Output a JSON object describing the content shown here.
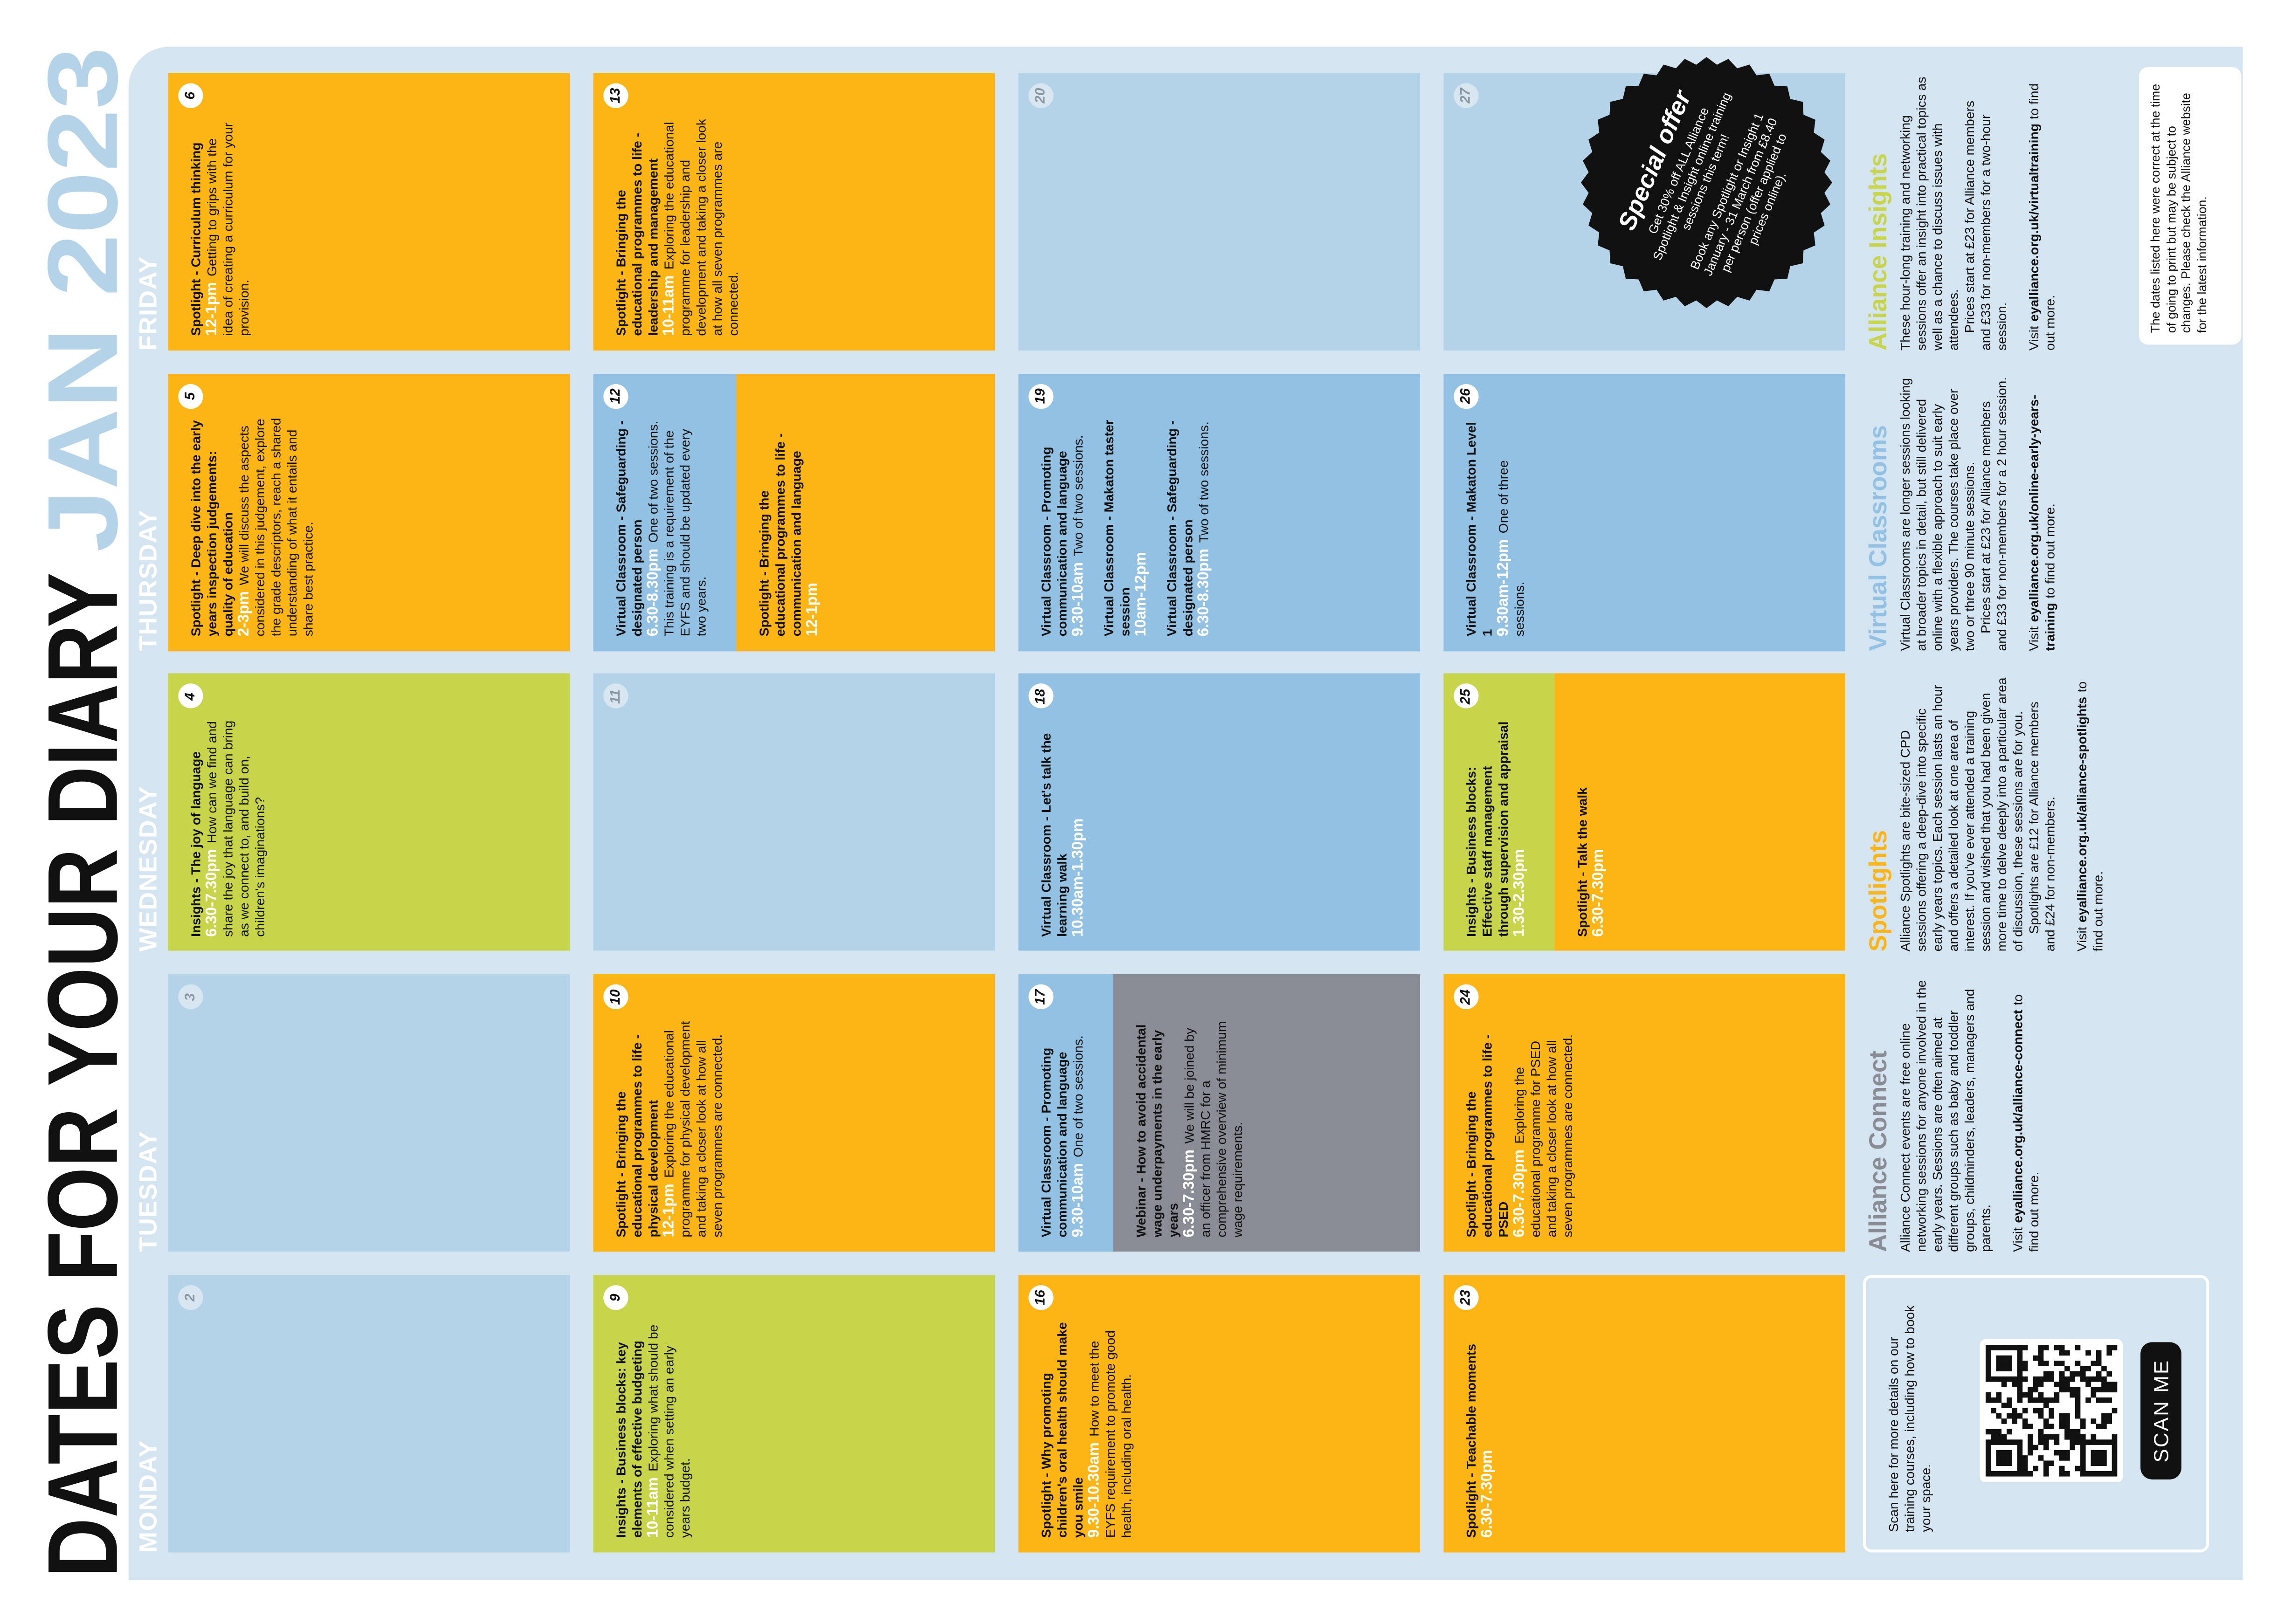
{
  "header": {
    "title": "DATES FOR YOUR DIARY",
    "month": "JAN 2023"
  },
  "days": [
    "MONDAY",
    "TUESDAY",
    "WEDNESDAY",
    "THURSDAY",
    "FRIDAY"
  ],
  "weeks": [
    [
      {
        "day": 2,
        "parts": [
          {
            "color": "#b5d3e8",
            "sessions": []
          }
        ]
      },
      {
        "day": 3,
        "parts": [
          {
            "color": "#b5d3e8",
            "sessions": []
          }
        ]
      },
      {
        "day": 4,
        "parts": [
          {
            "color": "#c8d44a",
            "sessions": [
              {
                "title": "Insights - The joy of language",
                "time": "6.30-7.30pm",
                "description": "How can we find and share the joy that language can bring as we connect to, and build on, children's imaginations?"
              }
            ]
          }
        ]
      },
      {
        "day": 5,
        "parts": [
          {
            "color": "#fdb515",
            "sessions": [
              {
                "title": "Spotlight - Deep dive into the early years inspection judgements: quality of education",
                "time": "2-3pm",
                "description": "We will discuss the aspects considered in this judgement, explore the grade descriptors, reach a shared understanding of what it entails and share best practice."
              }
            ]
          }
        ]
      },
      {
        "day": 6,
        "parts": [
          {
            "color": "#fdb515",
            "sessions": [
              {
                "title": "Spotlight - Curriculum thinking",
                "time": "12-1pm",
                "description": "Getting to grips with the idea of creating a curriculum for your provision."
              }
            ]
          }
        ]
      }
    ],
    [
      {
        "day": 9,
        "parts": [
          {
            "color": "#c8d44a",
            "sessions": [
              {
                "title": "Insights - Business blocks: key elements of effective budgeting",
                "time": "10-11am",
                "description": "Exploring what should be considered when setting an early years budget."
              }
            ]
          }
        ]
      },
      {
        "day": 10,
        "parts": [
          {
            "color": "#fdb515",
            "sessions": [
              {
                "title": "Spotlight - Bringing the educational programmes to life - physical development",
                "time": "12-1pm",
                "description": "Exploring the educational programme for physical development and taking a closer look at how all seven programmes are connected."
              }
            ]
          }
        ]
      },
      {
        "day": 11,
        "parts": [
          {
            "color": "#b5d3e8",
            "sessions": []
          }
        ]
      },
      {
        "day": 12,
        "parts": [
          {
            "color": "#93c1e3",
            "sessions": [
              {
                "title": "Virtual Classroom - Safeguarding - designated person",
                "time": "6.30-8.30pm",
                "description": "One of two sessions. This training is a requirement of the EYFS and should be updated every two years."
              }
            ]
          },
          {
            "color": "#fdb515",
            "sessions": [
              {
                "title": "Spotlight - Bringing the educational programmes to life - communication and language",
                "time": "12-1pm"
              }
            ]
          }
        ]
      },
      {
        "day": 13,
        "parts": [
          {
            "color": "#fdb515",
            "sessions": [
              {
                "title": "Spotlight - Bringing the educational programmes to life - leadership and management",
                "time": "10-11am",
                "description": "Exploring the educational programme for leadership and development and taking a closer look at how all seven programmes are connected."
              }
            ]
          }
        ]
      }
    ],
    [
      {
        "day": 16,
        "parts": [
          {
            "color": "#fdb515",
            "sessions": [
              {
                "title": "Spotlight - Why promoting children's oral health should make you smile",
                "time": "9.30-10.30am",
                "description": "How to meet the EYFS requirement to promote good health, including oral health."
              }
            ]
          }
        ]
      },
      {
        "day": 17,
        "parts": [
          {
            "color": "#93c1e3",
            "sessions": [
              {
                "title": "Virtual Classroom - Promoting communication and language",
                "time": "9.30-10am",
                "description": "One of two sessions."
              }
            ]
          },
          {
            "color": "#898c94",
            "sessions": [
              {
                "title": "Webinar - How to avoid accidental wage underpayments in the early years",
                "time": "6.30-7.30pm",
                "description": "We will be joined by an officer from HMRC for a comprehensive overview of minimum wage requirements."
              }
            ]
          }
        ]
      },
      {
        "day": 18,
        "parts": [
          {
            "color": "#93c1e3",
            "sessions": [
              {
                "title": "Virtual Classroom - Let's talk the learning walk",
                "time": "10.30am-1.30pm"
              }
            ]
          }
        ]
      },
      {
        "day": 19,
        "parts": [
          {
            "color": "#93c1e3",
            "sessions": [
              {
                "title": "Virtual Classroom - Promoting communication and language",
                "time": "9.30-10am",
                "description": "Two of two sessions."
              },
              {
                "title": "Virtual Classroom - Makaton taster session",
                "time": "10am-12pm"
              },
              {
                "title": "Virtual Classroom - Safeguarding - designated person",
                "time": "6.30-8.30pm",
                "description": "Two of two sessions."
              }
            ]
          }
        ]
      },
      {
        "day": 20,
        "parts": [
          {
            "color": "#b5d3e8",
            "sessions": []
          }
        ]
      }
    ],
    [
      {
        "day": 23,
        "parts": [
          {
            "color": "#fdb515",
            "sessions": [
              {
                "title": "Spotlight - Teachable moments",
                "time": "6.30-7.30pm"
              }
            ]
          }
        ]
      },
      {
        "day": 24,
        "parts": [
          {
            "color": "#fdb515",
            "sessions": [
              {
                "title": "Spotlight - Bringing the educational programmes to life - PSED",
                "time": "6.30-7.30pm",
                "description": "Exploring the educational programme for PSED and taking a closer look at how all seven programmes are connected."
              }
            ]
          }
        ]
      },
      {
        "day": 25,
        "parts": [
          {
            "color": "#c8d44a",
            "sessions": [
              {
                "title": "Insights - Business blocks: Effective staff management through supervision and appraisal",
                "time": "1.30-2.30pm"
              }
            ]
          },
          {
            "color": "#fdb515",
            "sessions": [
              {
                "title": "Spotlight - Talk the walk",
                "time": "6.30-7.30pm"
              }
            ]
          }
        ]
      },
      {
        "day": 26,
        "parts": [
          {
            "color": "#93c1e3",
            "sessions": [
              {
                "title": "Virtual Classroom - Makaton Level 1",
                "time": "9.30am-12pm",
                "description": "One of three sessions."
              }
            ]
          }
        ]
      },
      {
        "day": 27,
        "parts": [
          {
            "color": "#b5d3e8",
            "sessions": []
          }
        ]
      }
    ]
  ],
  "special_offer": {
    "title": "Special offer",
    "lines": [
      "Get 30% off ALL Alliance Spotlight & Insight online training sessions this term!",
      "Book any Spotlight or Insight 1 January - 31 March from £8.40 per person (offer applied to prices online)."
    ]
  },
  "info": {
    "sections": [
      {
        "heading": "Alliance Connect",
        "color": "#898c94",
        "paragraphs": [
          "Alliance Connect events are free online networking sessions for anyone involved in the early years. Sessions are often aimed at different groups such as baby and toddler groups, childminders, leaders, managers and parents."
        ],
        "visit": {
          "pre": "Visit",
          "link": "eyalliance.org.uk/alliance-connect",
          "post": "to find out more."
        }
      },
      {
        "heading": "Spotlights",
        "color": "#fdb515",
        "paragraphs": [
          "Alliance Spotlights are bite-sized CPD sessions offering a deep-dive into specific early years topics. Each session lasts an hour and offers a detailed look at one area of interest. If you've ever attended a training session and wished that you had been given more time to delve deeply into a particular area of discussion, these sessions are for you.",
          "Spotlights are £12 for Alliance members and £24 for non-members."
        ],
        "visit": {
          "pre": "Visit",
          "link": "eyalliance.org.uk/alliance-spotlights",
          "post": "to find out more."
        }
      },
      {
        "heading": "Virtual Classrooms",
        "color": "#93c1e3",
        "paragraphs": [
          "Virtual Classrooms are longer sessions looking at broader topics in detail, but still delivered online with a flexible approach to suit early years providers. The courses take place over two or three 90 minute sessions.",
          "Prices start at £23 for Alliance members and £33 for non-members for a 2 hour session."
        ],
        "visit": {
          "pre": "Visit",
          "link": "eyalliance.org.uk/online-early-years-training",
          "post": "to find out more."
        }
      },
      {
        "heading": "Alliance Insights",
        "color": "#c8d44a",
        "paragraphs": [
          "These hour-long training and networking sessions offer an insight into practical topics as well as a chance to discuss issues with attendees.",
          "Prices start at £23 for Alliance members and £33 for non-members for a two-hour session."
        ],
        "visit": {
          "pre": "Visit",
          "link": "eyalliance.org.uk/virtualtraining",
          "post": "to find out more."
        }
      }
    ],
    "qr": {
      "text": "Scan here for more details on our training courses, including how to book your space.",
      "label": "SCAN ME"
    },
    "disclaimer": "The dates listed here were correct at the time of going to print but may be subject to changes. Please check the Alliance website for the latest information."
  }
}
